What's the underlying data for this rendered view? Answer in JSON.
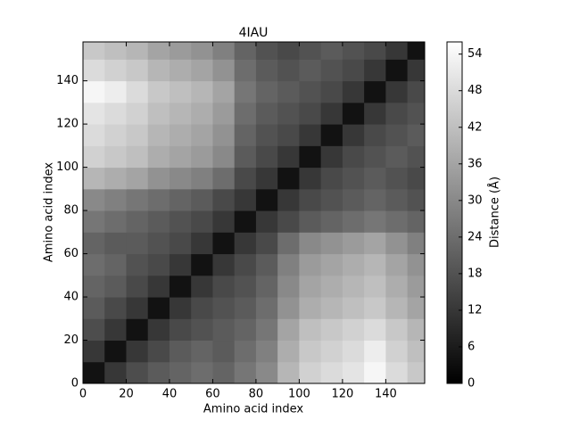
{
  "chart_data": {
    "type": "heatmap",
    "title": "4IAU",
    "x_label": "Amino acid index",
    "y_label": "Amino acid index",
    "xbins": [
      0,
      10,
      20,
      30,
      40,
      50,
      60,
      70,
      80,
      90,
      100,
      110,
      120,
      130,
      140,
      150,
      158
    ],
    "ybins": [
      0,
      10,
      20,
      30,
      40,
      50,
      60,
      70,
      80,
      90,
      100,
      110,
      120,
      130,
      140,
      150,
      158
    ],
    "values": [
      [
        4,
        12,
        17,
        20,
        22,
        24,
        22,
        26,
        30,
        40,
        46,
        48,
        50,
        54,
        48,
        44
      ],
      [
        12,
        4,
        12,
        16,
        20,
        22,
        20,
        24,
        28,
        38,
        44,
        46,
        48,
        52,
        46,
        42
      ],
      [
        17,
        12,
        4,
        12,
        16,
        18,
        20,
        22,
        26,
        36,
        42,
        44,
        46,
        48,
        44,
        40
      ],
      [
        20,
        16,
        12,
        4,
        12,
        16,
        18,
        20,
        24,
        32,
        38,
        40,
        42,
        44,
        40,
        36
      ],
      [
        22,
        20,
        16,
        12,
        4,
        12,
        16,
        18,
        22,
        30,
        36,
        38,
        40,
        42,
        38,
        34
      ],
      [
        24,
        22,
        18,
        16,
        12,
        4,
        12,
        16,
        20,
        28,
        34,
        36,
        38,
        40,
        36,
        32
      ],
      [
        22,
        20,
        20,
        18,
        16,
        12,
        4,
        12,
        16,
        24,
        30,
        32,
        34,
        36,
        32,
        28
      ],
      [
        26,
        24,
        22,
        20,
        18,
        16,
        12,
        4,
        12,
        16,
        20,
        22,
        24,
        26,
        24,
        22
      ],
      [
        30,
        28,
        26,
        24,
        22,
        20,
        16,
        12,
        4,
        12,
        16,
        18,
        20,
        22,
        20,
        18
      ],
      [
        40,
        38,
        36,
        32,
        30,
        28,
        24,
        16,
        12,
        4,
        12,
        16,
        18,
        20,
        18,
        16
      ],
      [
        46,
        44,
        42,
        38,
        36,
        34,
        30,
        20,
        16,
        12,
        4,
        12,
        16,
        18,
        20,
        18
      ],
      [
        48,
        46,
        44,
        40,
        38,
        36,
        32,
        22,
        18,
        16,
        12,
        4,
        12,
        16,
        18,
        20
      ],
      [
        50,
        48,
        46,
        42,
        40,
        38,
        34,
        24,
        20,
        18,
        16,
        12,
        4,
        12,
        16,
        18
      ],
      [
        54,
        52,
        48,
        44,
        42,
        40,
        36,
        26,
        22,
        20,
        18,
        16,
        12,
        4,
        12,
        16
      ],
      [
        48,
        46,
        44,
        40,
        38,
        36,
        32,
        24,
        20,
        18,
        20,
        18,
        16,
        12,
        4,
        12
      ],
      [
        44,
        42,
        40,
        36,
        34,
        32,
        28,
        22,
        18,
        16,
        18,
        20,
        18,
        16,
        12,
        4
      ]
    ],
    "xlim": [
      0,
      158
    ],
    "ylim": [
      0,
      158
    ],
    "xticks": [
      0,
      20,
      40,
      60,
      80,
      100,
      120,
      140
    ],
    "yticks": [
      0,
      20,
      40,
      60,
      80,
      100,
      120,
      140
    ],
    "colormap": "gray",
    "zlim": [
      0,
      56
    ],
    "zticks": [
      0,
      6,
      12,
      18,
      24,
      30,
      36,
      42,
      48,
      54
    ],
    "colorbar_label": "Distance (Å)"
  }
}
